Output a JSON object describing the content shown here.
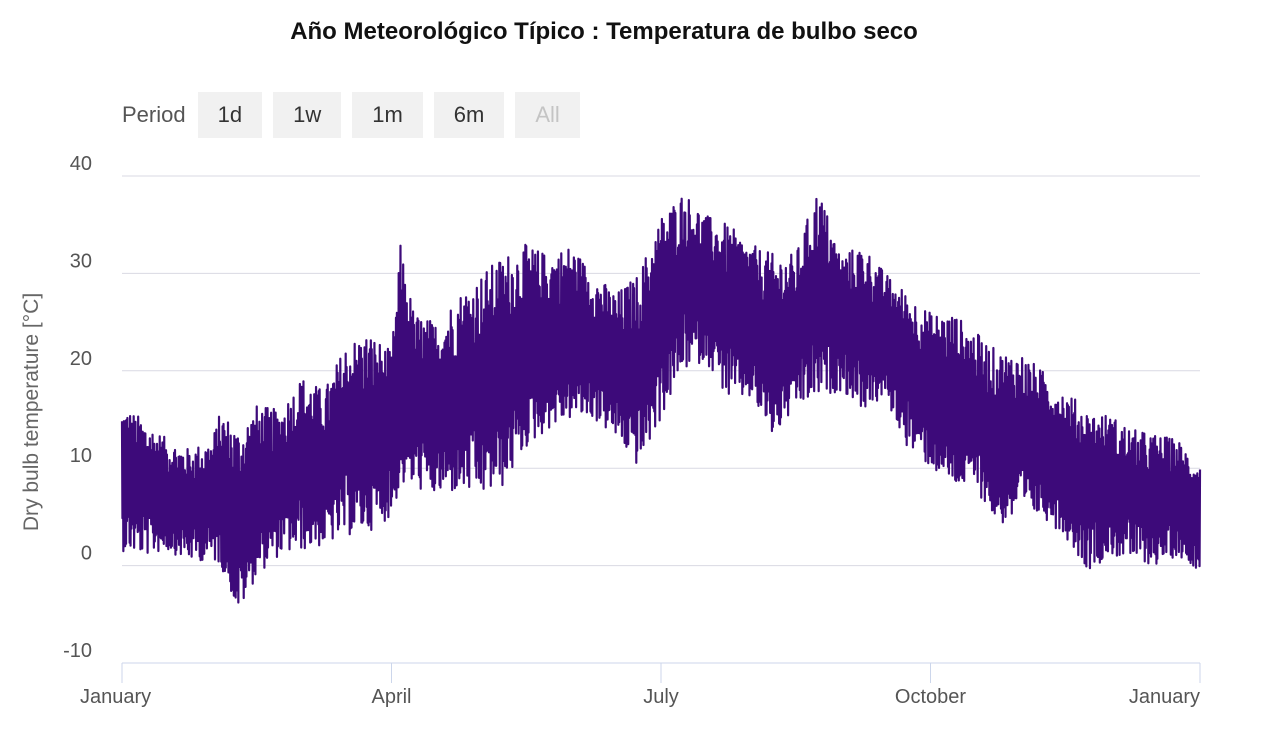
{
  "title": "Año Meteorológico Típico : Temperatura de bulbo seco",
  "range_selector": {
    "label": "Period",
    "buttons": [
      {
        "label": "1d",
        "disabled": false
      },
      {
        "label": "1w",
        "disabled": false
      },
      {
        "label": "1m",
        "disabled": false
      },
      {
        "label": "6m",
        "disabled": false
      },
      {
        "label": "All",
        "disabled": true
      }
    ]
  },
  "colors": {
    "series": "#3d0a7a",
    "grid": "#d9d9e3",
    "axis": "#ccd6eb"
  },
  "chart_data": {
    "type": "line",
    "title": "Año Meteorológico Típico : Temperatura de bulbo seco",
    "ylabel": "Dry bulb temperature [°C]",
    "xlabel": "",
    "ylim": [
      -10,
      40
    ],
    "yticks": [
      40,
      30,
      20,
      10,
      0,
      -10
    ],
    "xticks": [
      {
        "month": 0,
        "label": "January"
      },
      {
        "month": 3,
        "label": "April"
      },
      {
        "month": 6,
        "label": "July"
      },
      {
        "month": 9,
        "label": "October"
      },
      {
        "month": 12,
        "label": "January"
      }
    ],
    "grid": true,
    "legend": "none",
    "series": [
      {
        "x_unit": "month",
        "envelope_points": [
          {
            "x": 0.0,
            "min": 1.5,
            "max": 16.5
          },
          {
            "x": 0.25,
            "min": 1.0,
            "max": 15.0
          },
          {
            "x": 0.5,
            "min": 1.5,
            "max": 13.0
          },
          {
            "x": 0.75,
            "min": 0.5,
            "max": 12.0
          },
          {
            "x": 1.0,
            "min": 0.5,
            "max": 13.0
          },
          {
            "x": 1.1,
            "min": 0.0,
            "max": 16.0
          },
          {
            "x": 1.3,
            "min": -5.0,
            "max": 14.0
          },
          {
            "x": 1.5,
            "min": -1.0,
            "max": 16.5
          },
          {
            "x": 1.75,
            "min": 1.0,
            "max": 16.0
          },
          {
            "x": 2.0,
            "min": 1.5,
            "max": 19.5
          },
          {
            "x": 2.25,
            "min": 2.0,
            "max": 18.0
          },
          {
            "x": 2.5,
            "min": 3.0,
            "max": 23.0
          },
          {
            "x": 2.75,
            "min": 3.5,
            "max": 24.0
          },
          {
            "x": 3.0,
            "min": 5.0,
            "max": 22.0
          },
          {
            "x": 3.1,
            "min": 8.0,
            "max": 33.0
          },
          {
            "x": 3.25,
            "min": 8.0,
            "max": 26.0
          },
          {
            "x": 3.5,
            "min": 7.0,
            "max": 25.0
          },
          {
            "x": 3.75,
            "min": 7.5,
            "max": 28.0
          },
          {
            "x": 4.0,
            "min": 7.0,
            "max": 30.0
          },
          {
            "x": 4.25,
            "min": 8.0,
            "max": 32.0
          },
          {
            "x": 4.5,
            "min": 12.0,
            "max": 33.0
          },
          {
            "x": 4.75,
            "min": 14.0,
            "max": 32.0
          },
          {
            "x": 5.0,
            "min": 15.0,
            "max": 33.0
          },
          {
            "x": 5.25,
            "min": 15.0,
            "max": 30.0
          },
          {
            "x": 5.5,
            "min": 13.0,
            "max": 28.0
          },
          {
            "x": 5.75,
            "min": 10.0,
            "max": 30.0
          },
          {
            "x": 6.0,
            "min": 15.0,
            "max": 36.0
          },
          {
            "x": 6.25,
            "min": 20.0,
            "max": 38.5
          },
          {
            "x": 6.5,
            "min": 21.0,
            "max": 36.0
          },
          {
            "x": 6.75,
            "min": 17.0,
            "max": 35.0
          },
          {
            "x": 7.0,
            "min": 17.0,
            "max": 33.0
          },
          {
            "x": 7.25,
            "min": 13.0,
            "max": 32.0
          },
          {
            "x": 7.5,
            "min": 16.0,
            "max": 32.0
          },
          {
            "x": 7.75,
            "min": 17.0,
            "max": 39.0
          },
          {
            "x": 8.0,
            "min": 18.0,
            "max": 32.0
          },
          {
            "x": 8.25,
            "min": 16.0,
            "max": 33.0
          },
          {
            "x": 8.5,
            "min": 17.0,
            "max": 30.0
          },
          {
            "x": 8.75,
            "min": 12.0,
            "max": 28.0
          },
          {
            "x": 9.0,
            "min": 10.0,
            "max": 26.0
          },
          {
            "x": 9.25,
            "min": 8.0,
            "max": 26.0
          },
          {
            "x": 9.5,
            "min": 8.0,
            "max": 24.0
          },
          {
            "x": 9.75,
            "min": 4.0,
            "max": 22.0
          },
          {
            "x": 10.0,
            "min": 5.0,
            "max": 22.0
          },
          {
            "x": 10.25,
            "min": 5.0,
            "max": 20.0
          },
          {
            "x": 10.5,
            "min": 3.0,
            "max": 18.0
          },
          {
            "x": 10.75,
            "min": -0.5,
            "max": 16.0
          },
          {
            "x": 11.0,
            "min": 1.0,
            "max": 15.5
          },
          {
            "x": 11.25,
            "min": 0.5,
            "max": 14.0
          },
          {
            "x": 11.5,
            "min": 0.0,
            "max": 13.5
          },
          {
            "x": 11.75,
            "min": 1.0,
            "max": 13.0
          },
          {
            "x": 12.0,
            "min": -0.5,
            "max": 10.5
          }
        ]
      }
    ]
  }
}
